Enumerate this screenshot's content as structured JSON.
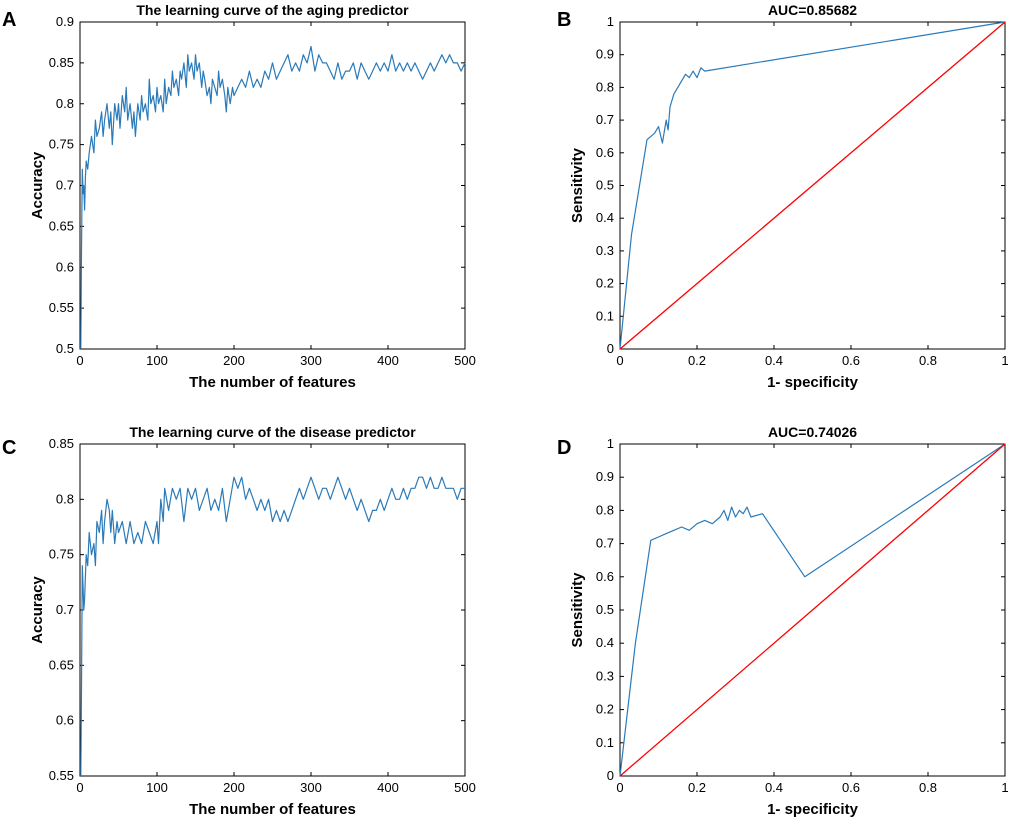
{
  "chart_data": [
    {
      "panel": "A",
      "type": "line",
      "title": "The learning curve of the aging predictor",
      "xlabel": "The number of features",
      "ylabel": "Accuracy",
      "xlim": [
        0,
        500
      ],
      "ylim": [
        0.5,
        0.9
      ],
      "xticks": [
        0,
        100,
        200,
        300,
        400,
        500
      ],
      "xtick_labels": [
        "0",
        "100",
        "200",
        "300",
        "400",
        "500"
      ],
      "yticks": [
        0.5,
        0.55,
        0.6,
        0.65,
        0.7,
        0.75,
        0.8,
        0.85,
        0.9
      ],
      "ytick_labels": [
        "0.5",
        "0.55",
        "0.6",
        "0.65",
        "0.7",
        "0.75",
        "0.8",
        "0.85",
        "0.9"
      ],
      "line_color": "#2a7ab9",
      "series": [
        {
          "name": "Accuracy",
          "x": [
            1,
            2,
            3,
            4,
            5,
            6,
            7,
            8,
            10,
            12,
            15,
            18,
            20,
            22,
            25,
            28,
            30,
            32,
            35,
            38,
            40,
            42,
            45,
            48,
            50,
            52,
            55,
            58,
            60,
            62,
            65,
            68,
            70,
            72,
            75,
            78,
            80,
            82,
            85,
            88,
            90,
            92,
            95,
            98,
            100,
            102,
            105,
            108,
            110,
            112,
            115,
            118,
            120,
            122,
            125,
            128,
            130,
            132,
            135,
            138,
            140,
            142,
            145,
            148,
            150,
            152,
            155,
            158,
            160,
            162,
            165,
            168,
            170,
            172,
            175,
            178,
            180,
            182,
            185,
            188,
            190,
            192,
            195,
            198,
            200,
            205,
            210,
            215,
            220,
            225,
            230,
            235,
            240,
            245,
            250,
            255,
            260,
            265,
            270,
            275,
            280,
            285,
            290,
            295,
            300,
            305,
            310,
            315,
            320,
            325,
            330,
            335,
            340,
            345,
            350,
            355,
            360,
            365,
            370,
            375,
            380,
            385,
            390,
            395,
            400,
            405,
            410,
            415,
            420,
            425,
            430,
            435,
            440,
            445,
            450,
            455,
            460,
            465,
            470,
            475,
            480,
            485,
            490,
            495,
            500
          ],
          "y": [
            0.5,
            0.62,
            0.72,
            0.69,
            0.7,
            0.67,
            0.71,
            0.73,
            0.72,
            0.74,
            0.76,
            0.74,
            0.78,
            0.76,
            0.77,
            0.79,
            0.76,
            0.78,
            0.8,
            0.77,
            0.79,
            0.75,
            0.8,
            0.78,
            0.8,
            0.77,
            0.81,
            0.79,
            0.82,
            0.78,
            0.8,
            0.77,
            0.79,
            0.76,
            0.8,
            0.78,
            0.81,
            0.79,
            0.8,
            0.78,
            0.83,
            0.8,
            0.81,
            0.79,
            0.82,
            0.8,
            0.81,
            0.79,
            0.83,
            0.8,
            0.82,
            0.81,
            0.84,
            0.82,
            0.83,
            0.81,
            0.84,
            0.83,
            0.85,
            0.82,
            0.86,
            0.84,
            0.85,
            0.83,
            0.86,
            0.84,
            0.85,
            0.82,
            0.84,
            0.83,
            0.81,
            0.82,
            0.8,
            0.83,
            0.82,
            0.81,
            0.84,
            0.82,
            0.83,
            0.81,
            0.79,
            0.82,
            0.8,
            0.82,
            0.81,
            0.82,
            0.83,
            0.82,
            0.84,
            0.82,
            0.83,
            0.82,
            0.84,
            0.83,
            0.85,
            0.83,
            0.84,
            0.85,
            0.86,
            0.84,
            0.85,
            0.84,
            0.86,
            0.85,
            0.87,
            0.84,
            0.86,
            0.85,
            0.85,
            0.84,
            0.83,
            0.85,
            0.83,
            0.84,
            0.84,
            0.85,
            0.83,
            0.85,
            0.84,
            0.83,
            0.84,
            0.85,
            0.84,
            0.85,
            0.84,
            0.86,
            0.84,
            0.85,
            0.84,
            0.85,
            0.84,
            0.85,
            0.84,
            0.83,
            0.84,
            0.85,
            0.84,
            0.85,
            0.86,
            0.85,
            0.86,
            0.85,
            0.85,
            0.84,
            0.85
          ]
        }
      ]
    },
    {
      "panel": "B",
      "type": "line",
      "title": "AUC=0.85682",
      "xlabel": "1- specificity",
      "ylabel": "Sensitivity",
      "xlim": [
        0,
        1
      ],
      "ylim": [
        0,
        1
      ],
      "xticks": [
        0,
        0.2,
        0.4,
        0.6,
        0.8,
        1
      ],
      "xtick_labels": [
        "0",
        "0.2",
        "0.4",
        "0.6",
        "0.8",
        "1"
      ],
      "yticks": [
        0,
        0.1,
        0.2,
        0.3,
        0.4,
        0.5,
        0.6,
        0.7,
        0.8,
        0.9,
        1
      ],
      "ytick_labels": [
        "0",
        "0.1",
        "0.2",
        "0.3",
        "0.4",
        "0.5",
        "0.6",
        "0.7",
        "0.8",
        "0.9",
        "1"
      ],
      "line_color": "#2a7ab9",
      "diag_color": "#ff0000",
      "series": [
        {
          "name": "ROC",
          "x": [
            0,
            0.03,
            0.07,
            0.09,
            0.1,
            0.11,
            0.12,
            0.125,
            0.13,
            0.14,
            0.15,
            0.16,
            0.17,
            0.18,
            0.19,
            0.2,
            0.21,
            0.22,
            1.0
          ],
          "y": [
            0,
            0.35,
            0.64,
            0.66,
            0.68,
            0.63,
            0.7,
            0.67,
            0.74,
            0.78,
            0.8,
            0.82,
            0.84,
            0.83,
            0.85,
            0.83,
            0.86,
            0.85,
            1.0
          ]
        },
        {
          "name": "Reference",
          "x": [
            0,
            1
          ],
          "y": [
            0,
            1
          ]
        }
      ]
    },
    {
      "panel": "C",
      "type": "line",
      "title": "The learning curve of the disease predictor",
      "xlabel": "The number of features",
      "ylabel": "Accuracy",
      "xlim": [
        0,
        500
      ],
      "ylim": [
        0.55,
        0.85
      ],
      "xticks": [
        0,
        100,
        200,
        300,
        400,
        500
      ],
      "xtick_labels": [
        "0",
        "100",
        "200",
        "300",
        "400",
        "500"
      ],
      "yticks": [
        0.55,
        0.6,
        0.65,
        0.7,
        0.75,
        0.8,
        0.85
      ],
      "ytick_labels": [
        "0.55",
        "0.6",
        "0.65",
        "0.7",
        "0.75",
        "0.8",
        "0.85"
      ],
      "line_color": "#2a7ab9",
      "series": [
        {
          "name": "Accuracy",
          "x": [
            1,
            2,
            3,
            4,
            5,
            6,
            8,
            10,
            12,
            15,
            18,
            20,
            22,
            25,
            28,
            30,
            32,
            35,
            38,
            40,
            42,
            45,
            48,
            50,
            55,
            60,
            65,
            70,
            75,
            80,
            85,
            90,
            95,
            100,
            102,
            105,
            108,
            110,
            115,
            120,
            125,
            130,
            135,
            140,
            145,
            150,
            155,
            160,
            165,
            170,
            175,
            180,
            185,
            190,
            195,
            200,
            205,
            210,
            215,
            220,
            225,
            230,
            235,
            240,
            245,
            250,
            255,
            260,
            265,
            270,
            275,
            280,
            285,
            290,
            295,
            300,
            305,
            310,
            315,
            320,
            325,
            330,
            335,
            340,
            345,
            350,
            355,
            360,
            365,
            370,
            375,
            380,
            385,
            390,
            395,
            400,
            405,
            410,
            415,
            420,
            425,
            430,
            435,
            440,
            445,
            450,
            455,
            460,
            465,
            470,
            475,
            480,
            485,
            490,
            495,
            500
          ],
          "y": [
            0.55,
            0.63,
            0.74,
            0.72,
            0.7,
            0.71,
            0.75,
            0.74,
            0.77,
            0.75,
            0.76,
            0.74,
            0.78,
            0.77,
            0.79,
            0.76,
            0.78,
            0.8,
            0.79,
            0.77,
            0.79,
            0.76,
            0.78,
            0.77,
            0.78,
            0.76,
            0.78,
            0.76,
            0.77,
            0.76,
            0.78,
            0.77,
            0.76,
            0.78,
            0.76,
            0.8,
            0.78,
            0.81,
            0.79,
            0.81,
            0.8,
            0.81,
            0.78,
            0.81,
            0.8,
            0.81,
            0.79,
            0.8,
            0.81,
            0.79,
            0.8,
            0.79,
            0.81,
            0.78,
            0.8,
            0.82,
            0.81,
            0.82,
            0.8,
            0.81,
            0.8,
            0.79,
            0.8,
            0.79,
            0.8,
            0.78,
            0.79,
            0.78,
            0.79,
            0.78,
            0.79,
            0.8,
            0.81,
            0.8,
            0.81,
            0.82,
            0.81,
            0.8,
            0.81,
            0.81,
            0.8,
            0.81,
            0.82,
            0.81,
            0.8,
            0.81,
            0.8,
            0.79,
            0.8,
            0.79,
            0.78,
            0.79,
            0.79,
            0.8,
            0.79,
            0.8,
            0.81,
            0.8,
            0.8,
            0.81,
            0.8,
            0.81,
            0.81,
            0.82,
            0.82,
            0.81,
            0.82,
            0.81,
            0.81,
            0.82,
            0.81,
            0.81,
            0.81,
            0.8,
            0.81,
            0.81
          ]
        }
      ]
    },
    {
      "panel": "D",
      "type": "line",
      "title": "AUC=0.74026",
      "xlabel": "1- specificity",
      "ylabel": "Sensitivity",
      "xlim": [
        0,
        1
      ],
      "ylim": [
        0,
        1
      ],
      "xticks": [
        0,
        0.2,
        0.4,
        0.6,
        0.8,
        1
      ],
      "xtick_labels": [
        "0",
        "0.2",
        "0.4",
        "0.6",
        "0.8",
        "1"
      ],
      "yticks": [
        0,
        0.1,
        0.2,
        0.3,
        0.4,
        0.5,
        0.6,
        0.7,
        0.8,
        0.9,
        1
      ],
      "ytick_labels": [
        "0",
        "0.1",
        "0.2",
        "0.3",
        "0.4",
        "0.5",
        "0.6",
        "0.7",
        "0.8",
        "0.9",
        "1"
      ],
      "line_color": "#2a7ab9",
      "diag_color": "#ff0000",
      "series": [
        {
          "name": "ROC",
          "x": [
            0,
            0.04,
            0.08,
            0.1,
            0.12,
            0.14,
            0.16,
            0.18,
            0.2,
            0.22,
            0.24,
            0.26,
            0.27,
            0.28,
            0.29,
            0.3,
            0.31,
            0.32,
            0.33,
            0.34,
            0.37,
            0.48,
            1.0
          ],
          "y": [
            0,
            0.4,
            0.71,
            0.72,
            0.73,
            0.74,
            0.75,
            0.74,
            0.76,
            0.77,
            0.76,
            0.78,
            0.8,
            0.77,
            0.81,
            0.78,
            0.8,
            0.79,
            0.81,
            0.78,
            0.79,
            0.6,
            1.0
          ]
        },
        {
          "name": "Reference",
          "x": [
            0,
            1
          ],
          "y": [
            0,
            1
          ]
        }
      ]
    }
  ]
}
